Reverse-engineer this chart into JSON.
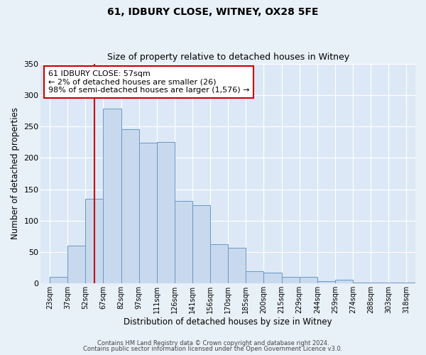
{
  "title": "61, IDBURY CLOSE, WITNEY, OX28 5FE",
  "subtitle": "Size of property relative to detached houses in Witney",
  "xlabel": "Distribution of detached houses by size in Witney",
  "ylabel": "Number of detached properties",
  "bar_labels": [
    "23sqm",
    "37sqm",
    "52sqm",
    "67sqm",
    "82sqm",
    "97sqm",
    "111sqm",
    "126sqm",
    "141sqm",
    "156sqm",
    "170sqm",
    "185sqm",
    "200sqm",
    "215sqm",
    "229sqm",
    "244sqm",
    "259sqm",
    "274sqm",
    "288sqm",
    "303sqm",
    "318sqm"
  ],
  "bar_values": [
    10,
    60,
    135,
    278,
    245,
    224,
    225,
    131,
    125,
    62,
    57,
    19,
    17,
    10,
    10,
    4,
    6,
    2,
    2,
    2,
    2
  ],
  "bar_color": "#c9d9ed",
  "bar_edge_color": "#6898c8",
  "background_color": "#e8f0f8",
  "plot_bg_color": "#dce8f5",
  "grid_color": "#ffffff",
  "vline_color": "#cc0000",
  "annotation_text": "61 IDBURY CLOSE: 57sqm\n← 2% of detached houses are smaller (26)\n98% of semi-detached houses are larger (1,576) →",
  "annotation_box_color": "#ffffff",
  "annotation_box_edge_color": "#cc0000",
  "ylim": [
    0,
    350
  ],
  "yticks": [
    0,
    50,
    100,
    150,
    200,
    250,
    300,
    350
  ],
  "footer1": "Contains HM Land Registry data © Crown copyright and database right 2024.",
  "footer2": "Contains public sector information licensed under the Open Government Licence v3.0."
}
